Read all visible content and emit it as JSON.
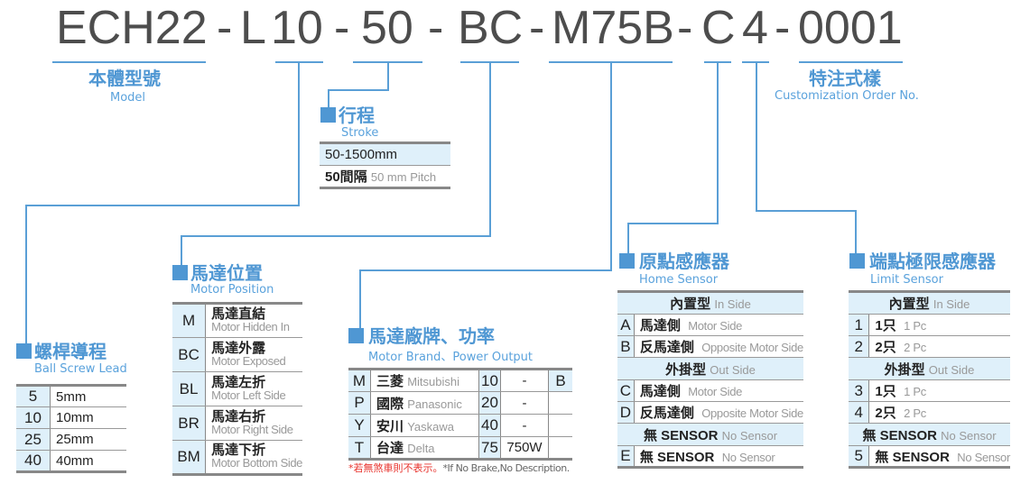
{
  "code": {
    "parts": [
      "ECH22",
      "-",
      "L",
      "10",
      "-",
      "50",
      "-",
      "BC",
      "-",
      "M75B",
      "-",
      "C",
      "4",
      "-",
      "0001"
    ]
  },
  "model": {
    "title": "本體型號",
    "sub": "Model"
  },
  "custom": {
    "title": "特注式樣",
    "sub": "Customization Order No."
  },
  "stroke": {
    "title": "行程",
    "sub": "Stroke",
    "rows": [
      {
        "a": "50-1500mm"
      },
      {
        "a": "50間隔",
        "en": "50 mm Pitch"
      }
    ]
  },
  "lead": {
    "title": "螺桿導程",
    "sub": "Ball Screw Lead",
    "rows": [
      {
        "k": "5",
        "v": "5mm"
      },
      {
        "k": "10",
        "v": "10mm"
      },
      {
        "k": "25",
        "v": "25mm"
      },
      {
        "k": "40",
        "v": "40mm"
      }
    ]
  },
  "position": {
    "title": "馬達位置",
    "sub": "Motor Position",
    "rows": [
      {
        "k": "M",
        "zh": "馬達直結",
        "en": "Motor Hidden In"
      },
      {
        "k": "BC",
        "zh": "馬達外露",
        "en": "Motor Exposed"
      },
      {
        "k": "BL",
        "zh": "馬達左折",
        "en": "Motor Left Side"
      },
      {
        "k": "BR",
        "zh": "馬達右折",
        "en": "Motor Right Side"
      },
      {
        "k": "BM",
        "zh": "馬達下折",
        "en": "Motor Bottom Side"
      }
    ]
  },
  "brand": {
    "title": "馬達廠牌、功率",
    "sub": "Motor Brand、Power Output",
    "brake": "B",
    "rows": [
      {
        "k": "M",
        "zh": "三菱",
        "en": "Mitsubishi",
        "p": "10",
        "w": "-"
      },
      {
        "k": "P",
        "zh": "國際",
        "en": "Panasonic",
        "p": "20",
        "w": "-"
      },
      {
        "k": "Y",
        "zh": "安川",
        "en": "Yaskawa",
        "p": "40",
        "w": "-"
      },
      {
        "k": "T",
        "zh": "台達",
        "en": "Delta",
        "p": "75",
        "w": "750W"
      }
    ],
    "note_zh": "*若無煞車則不表示。",
    "note_en": "*If No Brake,No Description."
  },
  "home": {
    "title": "原點感應器",
    "sub": "Home Sensor",
    "h1": {
      "zh": "內置型",
      "en": "In Side"
    },
    "h2": {
      "zh": "外掛型",
      "en": "Out Side"
    },
    "h3": {
      "zh": "無 SENSOR",
      "en": "No Sensor"
    },
    "rows": [
      {
        "k": "A",
        "zh": "馬達側",
        "en": "Motor Side"
      },
      {
        "k": "B",
        "zh": "反馬達側",
        "en": "Opposite Motor Side"
      },
      {
        "k": "C",
        "zh": "馬達側",
        "en": "Motor Side"
      },
      {
        "k": "D",
        "zh": "反馬達側",
        "en": "Opposite Motor Side"
      },
      {
        "k": "E",
        "zh": "無 SENSOR",
        "en": "No Sensor"
      }
    ]
  },
  "limit": {
    "title": "端點極限感應器",
    "sub": "Limit Sensor",
    "h1": {
      "zh": "內置型",
      "en": "In Side"
    },
    "h2": {
      "zh": "外掛型",
      "en": "Out Side"
    },
    "h3": {
      "zh": "無 SENSOR",
      "en": "No Sensor"
    },
    "rows": [
      {
        "k": "1",
        "zh": "1只",
        "en": "1 Pc"
      },
      {
        "k": "2",
        "zh": "2只",
        "en": "2 Pc"
      },
      {
        "k": "3",
        "zh": "1只",
        "en": "1 Pc"
      },
      {
        "k": "4",
        "zh": "2只",
        "en": "2 Pc"
      },
      {
        "k": "5",
        "zh": "無 SENSOR",
        "en": "No Sensor"
      }
    ]
  }
}
